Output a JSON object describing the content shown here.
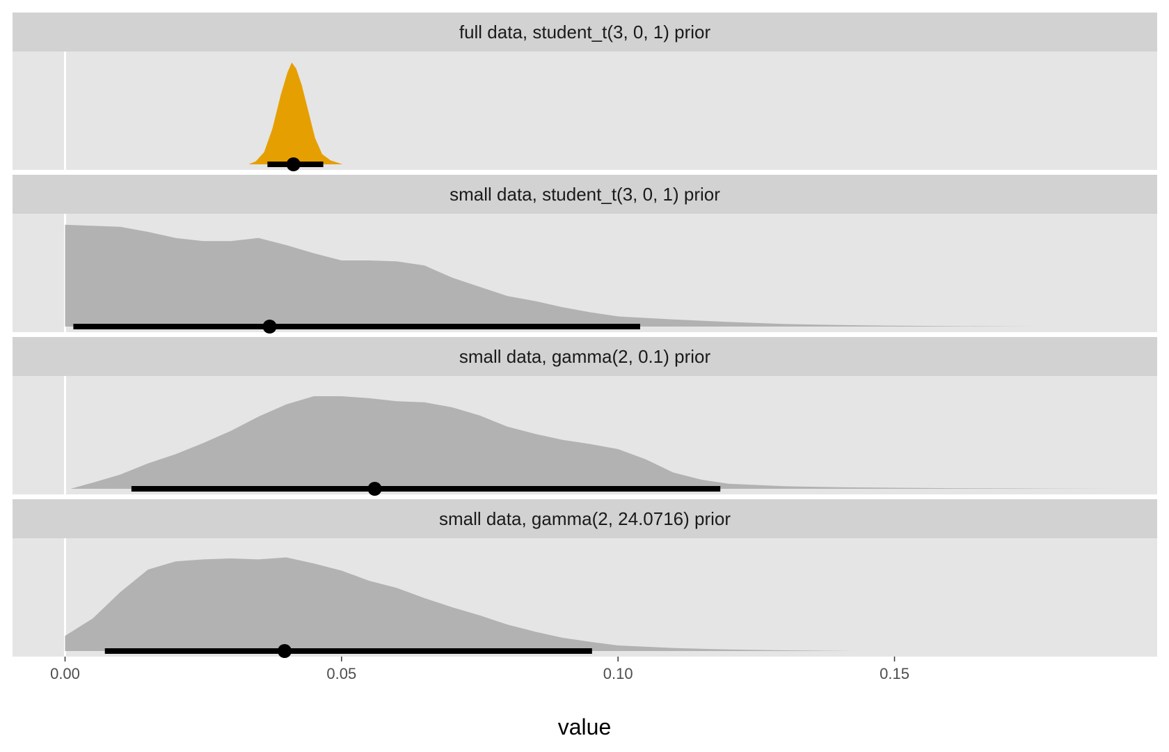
{
  "chart_data": {
    "type": "area",
    "xlabel": "value",
    "ylabel": "",
    "xlim": [
      -0.0095,
      0.1975
    ],
    "x_ticks": [
      {
        "value": 0.0,
        "label": "0.00"
      },
      {
        "value": 0.05,
        "label": "0.05"
      },
      {
        "value": 0.1,
        "label": "0.10"
      },
      {
        "value": 0.15,
        "label": "0.15"
      }
    ],
    "grid": false,
    "legend": "none",
    "vline_x": 0.0,
    "colors": {
      "panel_bg": "#e5e5e5",
      "strip_bg": "#d2d2d2",
      "highlight_fill": "#e69f00",
      "default_fill": "#b2b2b2",
      "interval": "#000000",
      "vline": "#ffffff"
    },
    "panels": [
      {
        "title": "full data, student_t(3, 0, 1) prior",
        "highlight": true,
        "point_estimate": 0.0413,
        "interval": [
          0.0366,
          0.0467
        ],
        "density": [
          [
            0.0332,
            0.0
          ],
          [
            0.0345,
            0.03
          ],
          [
            0.036,
            0.12
          ],
          [
            0.0375,
            0.35
          ],
          [
            0.039,
            0.68
          ],
          [
            0.0402,
            0.9
          ],
          [
            0.041,
            1.0
          ],
          [
            0.0418,
            0.94
          ],
          [
            0.0428,
            0.78
          ],
          [
            0.044,
            0.52
          ],
          [
            0.0452,
            0.26
          ],
          [
            0.0465,
            0.1
          ],
          [
            0.048,
            0.04
          ],
          [
            0.0502,
            0.0
          ]
        ]
      },
      {
        "title": "small data, student_t(3, 0, 1) prior",
        "highlight": false,
        "point_estimate": 0.037,
        "interval": [
          0.0015,
          0.104
        ],
        "density": [
          [
            0.0,
            1.0
          ],
          [
            0.005,
            0.99
          ],
          [
            0.01,
            0.98
          ],
          [
            0.015,
            0.93
          ],
          [
            0.02,
            0.87
          ],
          [
            0.025,
            0.84
          ],
          [
            0.03,
            0.84
          ],
          [
            0.035,
            0.87
          ],
          [
            0.04,
            0.8
          ],
          [
            0.045,
            0.72
          ],
          [
            0.05,
            0.65
          ],
          [
            0.055,
            0.65
          ],
          [
            0.06,
            0.64
          ],
          [
            0.065,
            0.6
          ],
          [
            0.07,
            0.48
          ],
          [
            0.075,
            0.39
          ],
          [
            0.08,
            0.3
          ],
          [
            0.085,
            0.25
          ],
          [
            0.09,
            0.19
          ],
          [
            0.095,
            0.14
          ],
          [
            0.1,
            0.1
          ],
          [
            0.11,
            0.07
          ],
          [
            0.12,
            0.045
          ],
          [
            0.13,
            0.025
          ],
          [
            0.14,
            0.015
          ],
          [
            0.15,
            0.008
          ],
          [
            0.16,
            0.004
          ],
          [
            0.175,
            0.0
          ]
        ]
      },
      {
        "title": "small data, gamma(2, 0.1) prior",
        "highlight": false,
        "point_estimate": 0.056,
        "interval": [
          0.012,
          0.1185
        ],
        "density": [
          [
            0.001,
            0.0
          ],
          [
            0.005,
            0.06
          ],
          [
            0.01,
            0.14
          ],
          [
            0.015,
            0.25
          ],
          [
            0.02,
            0.34
          ],
          [
            0.025,
            0.45
          ],
          [
            0.03,
            0.57
          ],
          [
            0.035,
            0.71
          ],
          [
            0.04,
            0.83
          ],
          [
            0.045,
            0.91
          ],
          [
            0.05,
            0.91
          ],
          [
            0.055,
            0.89
          ],
          [
            0.06,
            0.86
          ],
          [
            0.065,
            0.85
          ],
          [
            0.07,
            0.8
          ],
          [
            0.075,
            0.72
          ],
          [
            0.08,
            0.61
          ],
          [
            0.085,
            0.54
          ],
          [
            0.09,
            0.48
          ],
          [
            0.095,
            0.44
          ],
          [
            0.1,
            0.39
          ],
          [
            0.105,
            0.29
          ],
          [
            0.11,
            0.16
          ],
          [
            0.115,
            0.09
          ],
          [
            0.12,
            0.05
          ],
          [
            0.13,
            0.025
          ],
          [
            0.14,
            0.015
          ],
          [
            0.15,
            0.01
          ],
          [
            0.16,
            0.006
          ],
          [
            0.17,
            0.004
          ],
          [
            0.18,
            0.002
          ],
          [
            0.19,
            0.0
          ]
        ]
      },
      {
        "title": "small data, gamma(2, 24.0716) prior",
        "highlight": false,
        "point_estimate": 0.0397,
        "interval": [
          0.0072,
          0.0953
        ],
        "density": [
          [
            0.0,
            0.15
          ],
          [
            0.005,
            0.32
          ],
          [
            0.01,
            0.58
          ],
          [
            0.015,
            0.8
          ],
          [
            0.02,
            0.88
          ],
          [
            0.025,
            0.9
          ],
          [
            0.03,
            0.91
          ],
          [
            0.035,
            0.9
          ],
          [
            0.04,
            0.92
          ],
          [
            0.045,
            0.86
          ],
          [
            0.05,
            0.79
          ],
          [
            0.055,
            0.69
          ],
          [
            0.06,
            0.62
          ],
          [
            0.065,
            0.52
          ],
          [
            0.07,
            0.43
          ],
          [
            0.075,
            0.35
          ],
          [
            0.08,
            0.26
          ],
          [
            0.085,
            0.19
          ],
          [
            0.09,
            0.13
          ],
          [
            0.095,
            0.09
          ],
          [
            0.1,
            0.055
          ],
          [
            0.11,
            0.03
          ],
          [
            0.12,
            0.015
          ],
          [
            0.13,
            0.007
          ],
          [
            0.1425,
            0.0
          ]
        ]
      }
    ]
  }
}
